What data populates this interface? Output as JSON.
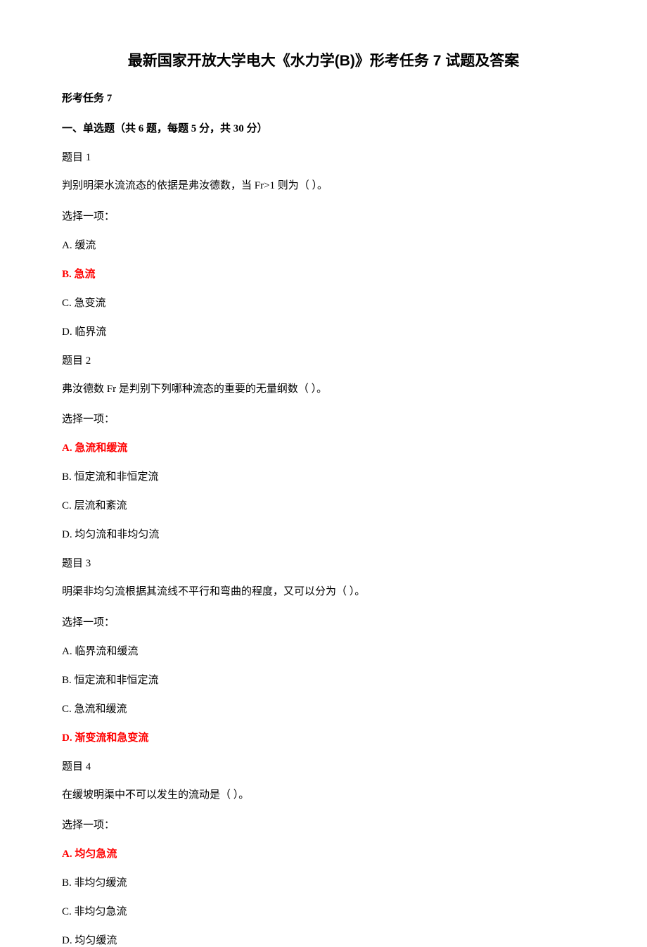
{
  "title": "最新国家开放大学电大《水力学(B)》形考任务 7 试题及答案",
  "task_header": "形考任务 7",
  "section_header": "一、单选题（共 6 题，每题 5 分，共 30 分）",
  "questions": [
    {
      "num": "题目 1",
      "text": "判别明渠水流流态的依据是弗汝德数，当 Fr>1 则为（ ）。",
      "select": "选择一项：",
      "options": [
        {
          "label": "A. 缓流",
          "correct": false
        },
        {
          "label": "B. 急流",
          "correct": true
        },
        {
          "label": "C. 急变流",
          "correct": false
        },
        {
          "label": "D. 临界流",
          "correct": false
        }
      ]
    },
    {
      "num": "题目 2",
      "text": "弗汝德数 Fr 是判别下列哪种流态的重要的无量纲数（ ）。",
      "select": "选择一项：",
      "options": [
        {
          "label": "A. 急流和缓流",
          "correct": true
        },
        {
          "label": "B. 恒定流和非恒定流",
          "correct": false
        },
        {
          "label": "C. 层流和紊流",
          "correct": false
        },
        {
          "label": "D. 均匀流和非均匀流",
          "correct": false
        }
      ]
    },
    {
      "num": "题目 3",
      "text": "明渠非均匀流根据其流线不平行和弯曲的程度，又可以分为（ ）。",
      "select": "选择一项：",
      "options": [
        {
          "label": "A. 临界流和缓流",
          "correct": false
        },
        {
          "label": "B. 恒定流和非恒定流",
          "correct": false
        },
        {
          "label": "C. 急流和缓流",
          "correct": false
        },
        {
          "label": "D. 渐变流和急变流",
          "correct": true
        }
      ]
    },
    {
      "num": "题目 4",
      "text": "在缓坡明渠中不可以发生的流动是（ ）。",
      "select": "选择一项：",
      "options": [
        {
          "label": "A. 均匀急流",
          "correct": true
        },
        {
          "label": "B. 非均匀缓流",
          "correct": false
        },
        {
          "label": "C. 非均匀急流",
          "correct": false
        },
        {
          "label": "D. 均匀缓流",
          "correct": false
        }
      ]
    }
  ]
}
